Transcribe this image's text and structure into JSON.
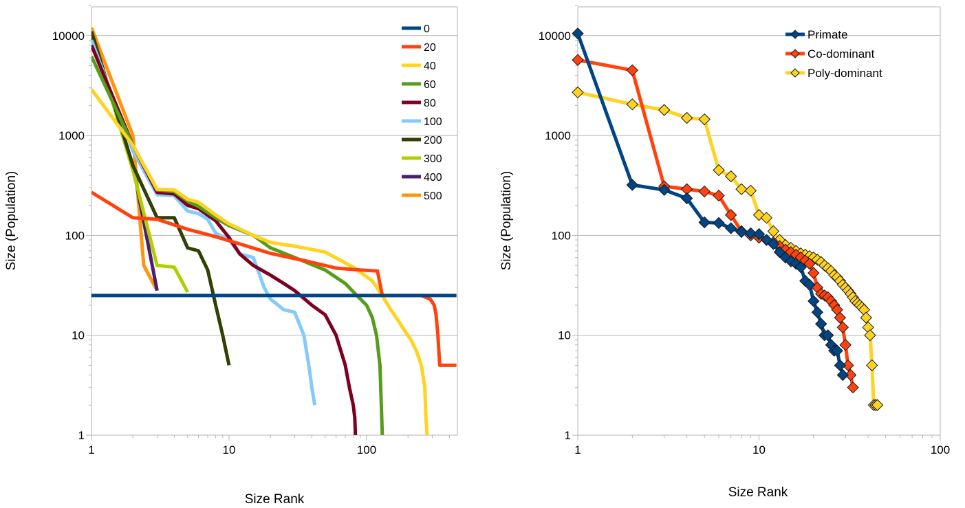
{
  "chart_data": [
    {
      "type": "line",
      "title": "",
      "xlabel": "Size Rank",
      "ylabel": "Size (Population)",
      "xscale": "log",
      "yscale": "log",
      "xlim": [
        1,
        450
      ],
      "ylim": [
        1,
        20000
      ],
      "x_ticks": [
        "1",
        "10",
        "100"
      ],
      "y_ticks": [
        "1",
        "10",
        "100",
        "1000",
        "10000"
      ],
      "grid": "horizontal",
      "legend": "top-right",
      "series": [
        {
          "name": "0",
          "color": "#004586",
          "x": [
            1,
            450
          ],
          "y": [
            25,
            25
          ]
        },
        {
          "name": "20",
          "color": "#ff420e",
          "x": [
            1,
            2,
            3,
            5,
            8,
            12,
            20,
            35,
            60,
            90,
            120,
            130,
            150,
            200,
            250,
            290,
            310,
            320,
            330,
            340,
            450
          ],
          "y": [
            270,
            150,
            145,
            115,
            97,
            82,
            66,
            56,
            47,
            45,
            44,
            25,
            25,
            25,
            25,
            23,
            20,
            16,
            10,
            5,
            5
          ]
        },
        {
          "name": "40",
          "color": "#ffd320",
          "x": [
            1,
            2,
            3,
            4,
            5,
            6,
            8,
            10,
            15,
            20,
            30,
            50,
            80,
            110,
            130,
            150,
            170,
            190,
            210,
            230,
            250,
            265,
            270,
            275
          ],
          "y": [
            2900,
            800,
            290,
            285,
            230,
            215,
            160,
            130,
            100,
            85,
            78,
            68,
            48,
            35,
            25,
            18,
            14,
            11,
            9,
            7,
            5,
            3,
            1.5,
            1
          ]
        },
        {
          "name": "60",
          "color": "#579d1c",
          "x": [
            1,
            2,
            3,
            4,
            5,
            6,
            8,
            10,
            15,
            20,
            30,
            50,
            70,
            85,
            100,
            110,
            118,
            125,
            128,
            130
          ],
          "y": [
            6200,
            800,
            285,
            275,
            220,
            195,
            150,
            125,
            100,
            75,
            60,
            45,
            33,
            25,
            20,
            15,
            10,
            5,
            2,
            1
          ]
        },
        {
          "name": "80",
          "color": "#7e0021",
          "x": [
            1,
            2,
            3,
            4,
            5,
            6,
            8,
            10,
            12,
            15,
            20,
            25,
            30,
            40,
            50,
            60,
            70,
            75,
            80,
            82,
            83
          ],
          "y": [
            8000,
            800,
            270,
            260,
            200,
            185,
            140,
            95,
            65,
            50,
            40,
            33,
            28,
            20,
            16,
            10,
            5,
            3,
            2,
            1.5,
            1
          ]
        },
        {
          "name": "100",
          "color": "#83caff",
          "x": [
            1,
            2,
            3,
            4,
            5,
            6,
            7,
            8,
            10,
            12,
            15,
            18,
            20,
            25,
            30,
            35,
            38,
            40,
            42
          ],
          "y": [
            9000,
            700,
            255,
            250,
            175,
            165,
            145,
            105,
            90,
            65,
            60,
            30,
            23,
            18,
            17,
            10,
            5,
            3,
            2
          ]
        },
        {
          "name": "200",
          "color": "#314004",
          "x": [
            1,
            2,
            3,
            4,
            5,
            6,
            7,
            8,
            9,
            10
          ],
          "y": [
            11000,
            500,
            150,
            150,
            75,
            70,
            45,
            20,
            10,
            5
          ]
        },
        {
          "name": "300",
          "color": "#aecf00",
          "x": [
            1,
            2,
            3,
            4,
            5
          ],
          "y": [
            11000,
            450,
            50,
            48,
            27
          ]
        },
        {
          "name": "400",
          "color": "#4b1f6f",
          "x": [
            1,
            2,
            3
          ],
          "y": [
            10000,
            500,
            28
          ]
        },
        {
          "name": "500",
          "color": "#ff950e",
          "x": [
            1,
            2,
            2.4,
            3
          ],
          "y": [
            12000,
            1000,
            50,
            28
          ]
        }
      ]
    },
    {
      "type": "line",
      "title": "",
      "xlabel": "Size Rank",
      "ylabel": "Size (Population)",
      "xscale": "log",
      "yscale": "log",
      "xlim": [
        1,
        100
      ],
      "ylim": [
        1,
        20000
      ],
      "x_ticks": [
        "1",
        "10",
        "100"
      ],
      "y_ticks": [
        "1",
        "10",
        "100",
        "1000",
        "10000"
      ],
      "grid": "horizontal",
      "legend": "top-right",
      "markers": "diamond",
      "series": [
        {
          "name": "Primate",
          "color": "#004586",
          "x": [
            1,
            2,
            3,
            4,
            5,
            6,
            7,
            8,
            9,
            10,
            11,
            12,
            13,
            14,
            15,
            16,
            17,
            18,
            19,
            20,
            21,
            22,
            23,
            24,
            25,
            26,
            27,
            28,
            29
          ],
          "y": [
            10500,
            320,
            285,
            235,
            135,
            133,
            118,
            108,
            105,
            103,
            90,
            82,
            68,
            60,
            55,
            52,
            48,
            35,
            32,
            22,
            17,
            13,
            10,
            10,
            8,
            7,
            7,
            5,
            4
          ]
        },
        {
          "name": "Co-dominant",
          "color": "#ff420e",
          "x": [
            1,
            2,
            3,
            4,
            5,
            6,
            7,
            8,
            9,
            10,
            11,
            12,
            13,
            14,
            15,
            16,
            17,
            18,
            19,
            20,
            21,
            22,
            23,
            24,
            25,
            26,
            27,
            28,
            29,
            30,
            31,
            32,
            33
          ],
          "y": [
            5700,
            4500,
            310,
            290,
            275,
            250,
            160,
            110,
            100,
            95,
            90,
            85,
            78,
            72,
            68,
            64,
            60,
            56,
            52,
            42,
            30,
            26,
            25,
            24,
            22,
            20,
            18,
            15,
            12,
            8,
            5,
            4,
            3
          ]
        },
        {
          "name": "Poly-dominant",
          "color": "#ffd320",
          "x": [
            1,
            2,
            3,
            4,
            5,
            6,
            7,
            8,
            9,
            10,
            11,
            12,
            13,
            14,
            15,
            16,
            17,
            18,
            19,
            20,
            21,
            22,
            23,
            24,
            25,
            26,
            27,
            28,
            29,
            30,
            31,
            32,
            33,
            34,
            35,
            36,
            37,
            38,
            39,
            40,
            41,
            42,
            43,
            44,
            45
          ],
          "y": [
            2700,
            2050,
            1800,
            1500,
            1450,
            450,
            390,
            290,
            280,
            160,
            150,
            110,
            90,
            80,
            75,
            70,
            66,
            64,
            62,
            60,
            57,
            54,
            50,
            47,
            44,
            40,
            38,
            35,
            32,
            30,
            28,
            26,
            24,
            22,
            21,
            20,
            19,
            18,
            15,
            12,
            10,
            5,
            2,
            2,
            2
          ]
        }
      ]
    }
  ]
}
